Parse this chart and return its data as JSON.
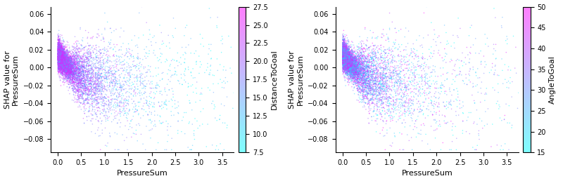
{
  "n_points": 8000,
  "seed": 42,
  "plot1": {
    "xlabel": "PressureSum",
    "ylabel": "SHAP value for\nPressureSum",
    "colorbar_label": "DistanceToGoal",
    "cbar_ticks": [
      7.5,
      10.0,
      12.5,
      15.0,
      17.5,
      20.0,
      22.5,
      25.0,
      27.5
    ],
    "cmap": "cool",
    "color_vmin": 7.5,
    "color_vmax": 27.5
  },
  "plot2": {
    "xlabel": "PressureSum",
    "ylabel": "SHAP value for\nPressureSum",
    "colorbar_label": "AngleToGoal",
    "cbar_ticks": [
      15,
      20,
      25,
      30,
      35,
      40,
      45,
      50
    ],
    "cmap": "cool",
    "color_vmin": 15,
    "color_vmax": 50
  },
  "xlim": [
    -0.15,
    3.75
  ],
  "ylim": [
    -0.095,
    0.068
  ],
  "xticks": [
    0.0,
    0.5,
    1.0,
    1.5,
    2.0,
    2.5,
    3.0,
    3.5
  ],
  "yticks": [
    -0.08,
    -0.06,
    -0.04,
    -0.02,
    0.0,
    0.02,
    0.04,
    0.06
  ],
  "point_size": 1.2,
  "alpha": 0.5,
  "background_color": "#ffffff"
}
